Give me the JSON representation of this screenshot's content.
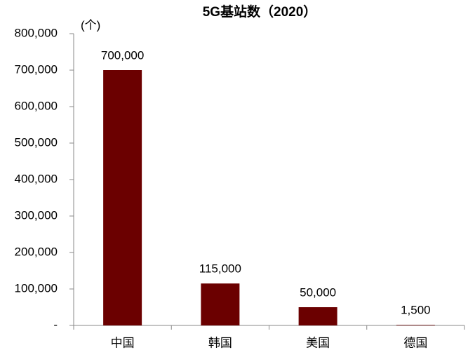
{
  "chart_data": {
    "type": "bar",
    "title": "5G基站数（2020）",
    "unit_label": "(个)",
    "categories": [
      "中国",
      "韩国",
      "美国",
      "德国"
    ],
    "values": [
      700000,
      115000,
      50000,
      1500
    ],
    "value_labels": [
      "700,000",
      "115,000",
      "50,000",
      "1,500"
    ],
    "color": "#6b0000",
    "ylim": [
      0,
      800000
    ],
    "yticks": [
      {
        "value": 0,
        "label": "-"
      },
      {
        "value": 100000,
        "label": "100,000"
      },
      {
        "value": 200000,
        "label": "200,000"
      },
      {
        "value": 300000,
        "label": "300,000"
      },
      {
        "value": 400000,
        "label": "400,000"
      },
      {
        "value": 500000,
        "label": "500,000"
      },
      {
        "value": 600000,
        "label": "600,000"
      },
      {
        "value": 700000,
        "label": "700,000"
      },
      {
        "value": 800000,
        "label": "800,000"
      }
    ],
    "grid": false
  }
}
